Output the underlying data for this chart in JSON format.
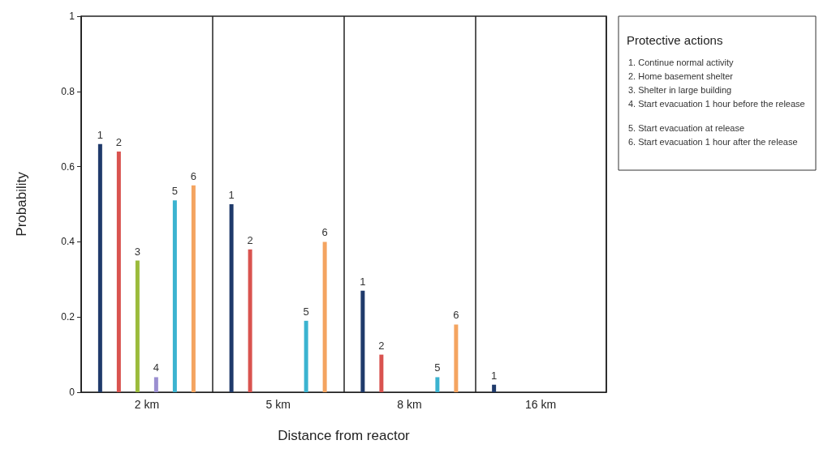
{
  "chart_data": {
    "type": "bar",
    "xlabel": "Distance from reactor",
    "ylabel": "Probability",
    "legend_title": "Protective actions",
    "categories": [
      "2 km",
      "5 km",
      "8 km",
      "16 km"
    ],
    "series": [
      {
        "name": "1",
        "color": "#1f3a6b",
        "values": [
          0.66,
          0.5,
          0.27,
          0.02
        ]
      },
      {
        "name": "2",
        "color": "#d9534f",
        "values": [
          0.64,
          0.38,
          0.1,
          null
        ]
      },
      {
        "name": "3",
        "color": "#9bbb3b",
        "values": [
          0.35,
          null,
          null,
          null
        ]
      },
      {
        "name": "4",
        "color": "#9b8fd0",
        "values": [
          0.04,
          null,
          null,
          null
        ]
      },
      {
        "name": "5",
        "color": "#3bb3d0",
        "values": [
          0.51,
          0.19,
          0.04,
          null
        ]
      },
      {
        "name": "6",
        "color": "#f4a460",
        "values": [
          0.55,
          0.4,
          0.18,
          null
        ]
      }
    ],
    "ylim": [
      0,
      1
    ],
    "yticks": [
      0,
      0.2,
      0.4,
      0.6,
      0.8,
      1
    ],
    "grid": "x",
    "annotations": [
      "1. Continue normal activity",
      "2. Home basement shelter",
      "3. Shelter in large building",
      "4. Start evacuation 1 hour before the release",
      "5. Start evacuation at release",
      "6. Start evacuation 1 hour after the release"
    ]
  }
}
